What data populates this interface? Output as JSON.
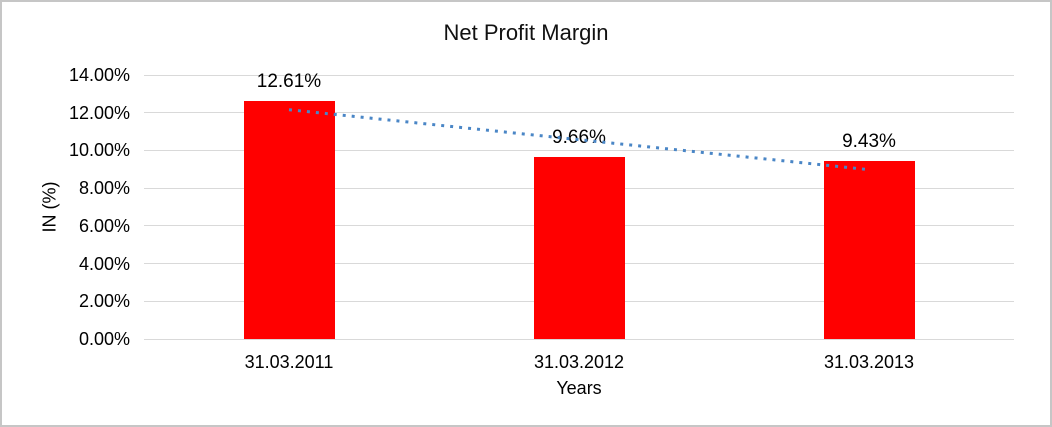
{
  "chart_data": {
    "type": "bar",
    "title": "Net Profit Margin",
    "categories": [
      "31.03.2011",
      "31.03.2012",
      "31.03.2013"
    ],
    "series": [
      {
        "name": "Net Profit Margin",
        "values": [
          12.61,
          9.66,
          9.43
        ]
      }
    ],
    "value_labels": [
      "12.61%",
      "9.66%",
      "9.43%"
    ],
    "xlabel": "Years",
    "ylabel": "IN (%)",
    "ylim": [
      0,
      14
    ],
    "ytick_step": 2,
    "ytick_labels": [
      "0.00%",
      "2.00%",
      "4.00%",
      "6.00%",
      "8.00%",
      "10.00%",
      "12.00%",
      "14.00%"
    ],
    "grid": true,
    "legend": "none",
    "bar_color": "#ff0000",
    "gridline_color": "#d9d9d9",
    "trendline": {
      "type": "linear",
      "style": "dotted",
      "color": "#4a86c6",
      "start_value": 12.16,
      "end_value": 8.98
    }
  }
}
